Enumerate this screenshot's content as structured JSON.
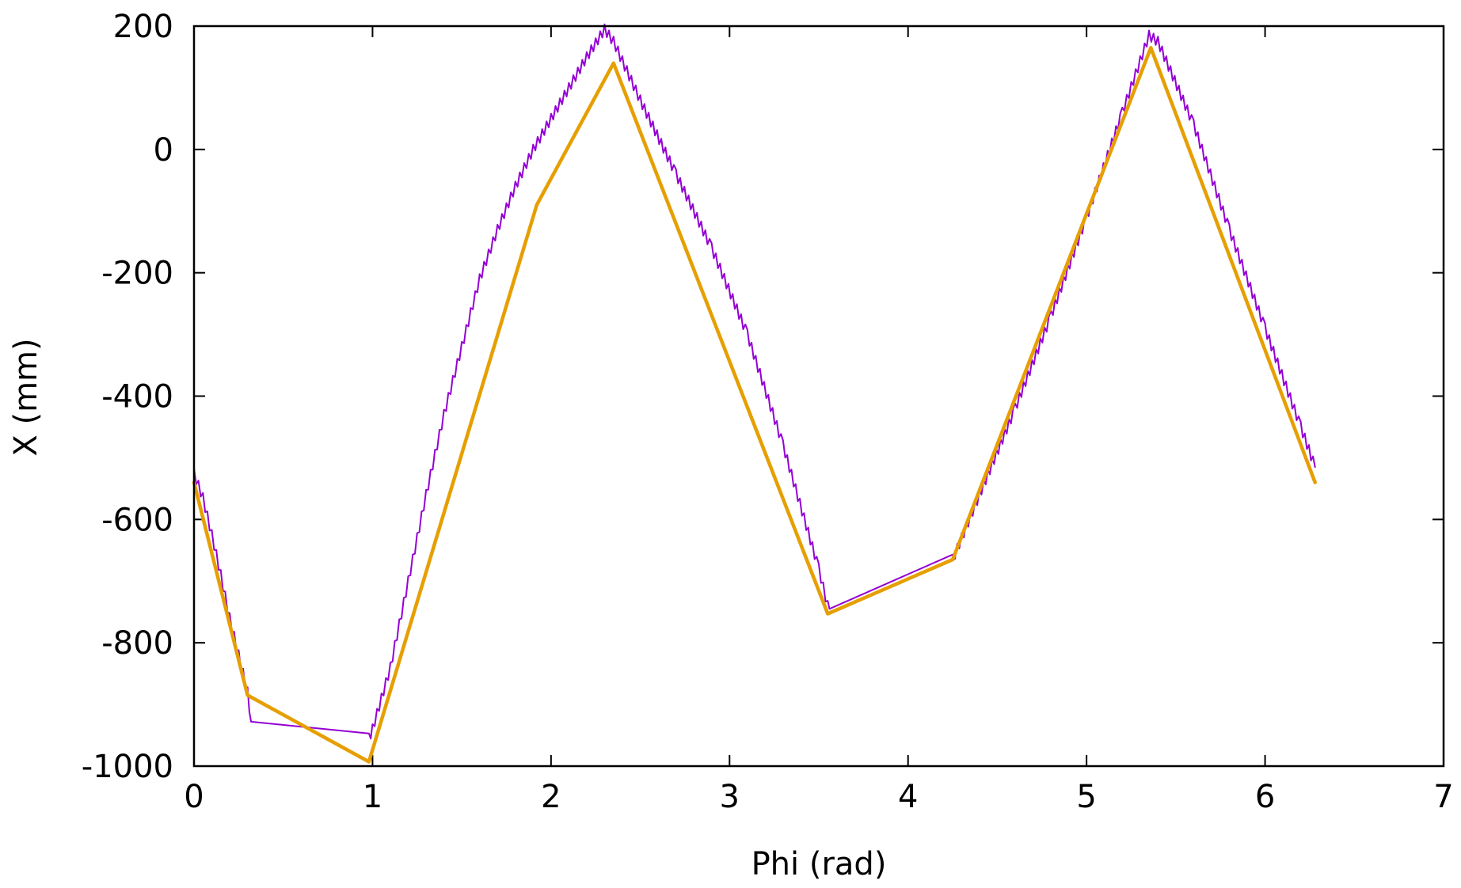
{
  "chart_data": {
    "type": "line",
    "title": "",
    "xlabel": "Phi (rad)",
    "ylabel": "X (mm)",
    "xlim": [
      0,
      7
    ],
    "ylim": [
      -1000,
      200
    ],
    "xticks": [
      0,
      1,
      2,
      3,
      4,
      5,
      6,
      7
    ],
    "yticks": [
      -1000,
      -800,
      -600,
      -400,
      -200,
      0,
      200
    ],
    "xtick_labels": [
      "0",
      "1",
      "2",
      "3",
      "4",
      "5",
      "6",
      "7"
    ],
    "ytick_labels": [
      "-1000",
      "-800",
      "-600",
      "-400",
      "-200",
      "0",
      "200"
    ],
    "grid": false,
    "legend": "none",
    "series": [
      {
        "color": "#9400d3",
        "style": "thin-oscillating",
        "points": [
          [
            0.0,
            -525
          ],
          [
            0.05,
            -565
          ],
          [
            0.1,
            -625
          ],
          [
            0.15,
            -690
          ],
          [
            0.2,
            -760
          ],
          [
            0.25,
            -820
          ],
          [
            0.3,
            -880
          ],
          [
            0.32,
            -928
          ],
          [
            0.98,
            -955
          ],
          [
            1.0,
            -940
          ],
          [
            1.1,
            -840
          ],
          [
            1.2,
            -700
          ],
          [
            1.3,
            -560
          ],
          [
            1.4,
            -430
          ],
          [
            1.5,
            -320
          ],
          [
            1.6,
            -210
          ],
          [
            1.7,
            -130
          ],
          [
            1.8,
            -60
          ],
          [
            1.9,
            0
          ],
          [
            2.0,
            50
          ],
          [
            2.1,
            100
          ],
          [
            2.2,
            150
          ],
          [
            2.3,
            195
          ],
          [
            2.35,
            175
          ],
          [
            2.5,
            80
          ],
          [
            2.7,
            -40
          ],
          [
            2.9,
            -160
          ],
          [
            3.1,
            -300
          ],
          [
            3.3,
            -480
          ],
          [
            3.5,
            -680
          ],
          [
            3.55,
            -740
          ],
          [
            3.56,
            -745
          ],
          [
            4.25,
            -665
          ],
          [
            4.3,
            -630
          ],
          [
            4.4,
            -560
          ],
          [
            4.6,
            -420
          ],
          [
            4.8,
            -270
          ],
          [
            5.0,
            -110
          ],
          [
            5.2,
            60
          ],
          [
            5.35,
            185
          ],
          [
            5.4,
            175
          ],
          [
            5.6,
            40
          ],
          [
            5.8,
            -130
          ],
          [
            6.0,
            -290
          ],
          [
            6.2,
            -450
          ],
          [
            6.28,
            -515
          ]
        ]
      },
      {
        "color": "#e69f00",
        "style": "thick",
        "points": [
          [
            0.0,
            -540
          ],
          [
            0.3,
            -885
          ],
          [
            0.98,
            -993
          ],
          [
            1.92,
            -90
          ],
          [
            2.35,
            140
          ],
          [
            3.55,
            -753
          ],
          [
            4.25,
            -665
          ],
          [
            5.36,
            165
          ],
          [
            6.28,
            -540
          ]
        ]
      }
    ]
  }
}
